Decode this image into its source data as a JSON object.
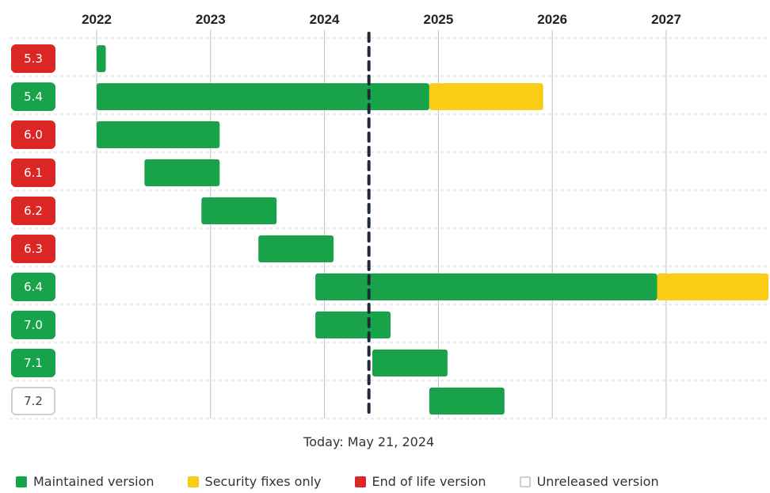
{
  "colors": {
    "maintained": "#18a34a",
    "security": "#facc15",
    "eol": "#dc2626",
    "unreleased_border": "#cfcfcf",
    "today_line": "#1f2937"
  },
  "chart_data": {
    "type": "gantt",
    "title": "",
    "x_axis": {
      "years": [
        "2022",
        "2023",
        "2024",
        "2025",
        "2026",
        "2027"
      ],
      "range": [
        2021.83,
        2027.9
      ]
    },
    "today": {
      "value": 2024.39,
      "label": "Today: May 21, 2024"
    },
    "versions": [
      {
        "label": "5.3",
        "status": "eol",
        "maintained": [
          2022.0,
          2022.08
        ],
        "security": null
      },
      {
        "label": "5.4",
        "status": "maintained",
        "maintained": [
          2022.0,
          2024.92
        ],
        "security": [
          2024.92,
          2025.92
        ]
      },
      {
        "label": "6.0",
        "status": "eol",
        "maintained": [
          2022.0,
          2023.08
        ],
        "security": null
      },
      {
        "label": "6.1",
        "status": "eol",
        "maintained": [
          2022.42,
          2023.08
        ],
        "security": null
      },
      {
        "label": "6.2",
        "status": "eol",
        "maintained": [
          2022.92,
          2023.58
        ],
        "security": null
      },
      {
        "label": "6.3",
        "status": "eol",
        "maintained": [
          2023.42,
          2024.08
        ],
        "security": null
      },
      {
        "label": "6.4",
        "status": "maintained",
        "maintained": [
          2023.92,
          2026.92
        ],
        "security": [
          2026.92,
          2027.9
        ]
      },
      {
        "label": "7.0",
        "status": "maintained",
        "maintained": [
          2023.92,
          2024.58
        ],
        "security": null
      },
      {
        "label": "7.1",
        "status": "maintained",
        "maintained": [
          2024.42,
          2025.08
        ],
        "security": null
      },
      {
        "label": "7.2",
        "status": "unreleased",
        "maintained": [
          2024.92,
          2025.58
        ],
        "security": null
      }
    ]
  },
  "legend": [
    {
      "label": "Maintained version",
      "color": "#18a34a",
      "kind": "maintained"
    },
    {
      "label": "Security fixes only",
      "color": "#facc15",
      "kind": "security"
    },
    {
      "label": "End of life version",
      "color": "#dc2626",
      "kind": "eol"
    },
    {
      "label": "Unreleased version",
      "color": "#ffffff",
      "kind": "unreleased"
    }
  ]
}
